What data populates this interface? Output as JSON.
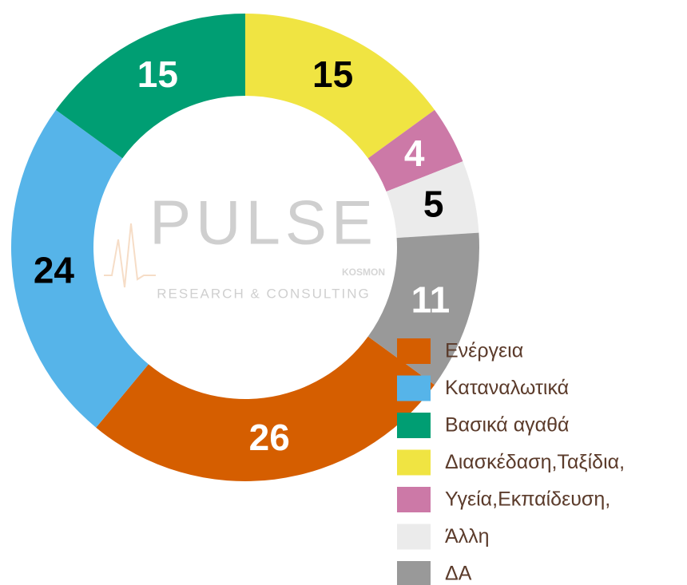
{
  "chart_data": {
    "type": "donut",
    "categories": [
      "Ενέργεια",
      "Καταναλωτικά",
      "Βασικά αγαθά",
      "Διασκέδαση,Ταξίδια,",
      "Υγεία,Εκπαίδευση,",
      "Άλλη",
      "ΔΑ"
    ],
    "values": [
      26,
      24,
      15,
      15,
      4,
      5,
      11
    ],
    "colors": [
      "#d55e00",
      "#56b4e9",
      "#009e73",
      "#f0e442",
      "#cc79a7",
      "#ebebeb",
      "#999999"
    ],
    "label_colors": [
      "#ffffff",
      "#000000",
      "#ffffff",
      "#000000",
      "#ffffff",
      "#000000",
      "#ffffff"
    ],
    "legend": "bottom-right",
    "watermark": {
      "title": "PULSE",
      "subtitle": "RESEARCH & CONSULTING",
      "tag": "KOSMON"
    }
  }
}
